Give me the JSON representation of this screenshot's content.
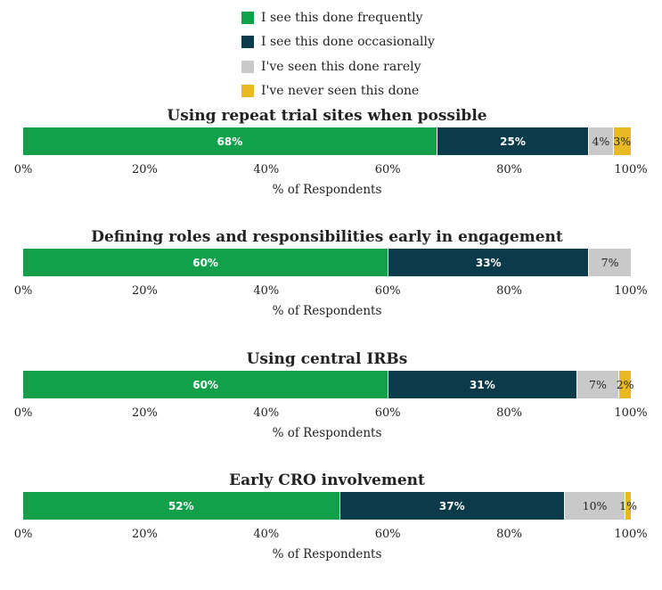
{
  "chart_data": [
    {
      "type": "bar",
      "orientation": "horizontal",
      "stacked": true,
      "title": "Using repeat trial sites when possible",
      "xlabel": "% of Respondents",
      "xlim": [
        0,
        100
      ],
      "values": [
        68,
        25,
        4,
        3
      ],
      "labels": [
        "68%",
        "25%",
        "4%",
        "3%"
      ]
    },
    {
      "type": "bar",
      "orientation": "horizontal",
      "stacked": true,
      "title": "Defining roles and responsibilities early in engagement",
      "xlabel": "% of Respondents",
      "xlim": [
        0,
        100
      ],
      "values": [
        60,
        33,
        7,
        0
      ],
      "labels": [
        "60%",
        "33%",
        "7%",
        ""
      ]
    },
    {
      "type": "bar",
      "orientation": "horizontal",
      "stacked": true,
      "title": "Using central IRBs",
      "xlabel": "% of Respondents",
      "xlim": [
        0,
        100
      ],
      "values": [
        60,
        31,
        7,
        2
      ],
      "labels": [
        "60%",
        "31%",
        "7%",
        "2%"
      ]
    },
    {
      "type": "bar",
      "orientation": "horizontal",
      "stacked": true,
      "title": "Early CRO involvement",
      "xlabel": "% of Respondents",
      "xlim": [
        0,
        100
      ],
      "values": [
        52,
        37,
        10,
        1
      ],
      "labels": [
        "52%",
        "37%",
        "10%",
        "1%"
      ]
    }
  ],
  "legend": [
    {
      "label": "I see this done frequently",
      "color": "#12a04b"
    },
    {
      "label": "I see this done occasionally",
      "color": "#0b3a4a"
    },
    {
      "label": "I've seen this done rarely",
      "color": "#c9c9c9"
    },
    {
      "label": "I've never seen this done",
      "color": "#e8b922"
    }
  ],
  "ticks": [
    "0%",
    "20%",
    "40%",
    "60%",
    "80%",
    "100%"
  ]
}
